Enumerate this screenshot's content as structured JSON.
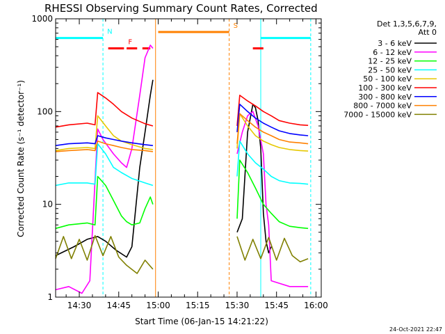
{
  "chart_data": {
    "type": "line",
    "title": "RHESSI Observing Summary Count Rates, Corrected",
    "xlabel": "Start Time (06-Jan-15 14:21:22)",
    "ylabel": "Corrected Count Rate (s⁻¹ detector⁻¹)",
    "xlim": [
      "14:21",
      "16:02"
    ],
    "ylim": [
      1,
      1000
    ],
    "yscale": "log",
    "x_ticks": [
      "14:30",
      "14:45",
      "15:00",
      "15:15",
      "15:30",
      "15:45",
      "16:00"
    ],
    "y_ticks": [
      1,
      10,
      100,
      1000
    ],
    "y_tick_labels": [
      "1",
      "10",
      "100",
      "1000"
    ],
    "legend": {
      "title_lines": [
        "Det 1,3,5,6,7,9,",
        "Att 0"
      ],
      "position": "right"
    },
    "series": [
      {
        "name": "3 - 6 keV",
        "color": "#000000",
        "segments": [
          {
            "x": [
              "14:21",
              "14:28",
              "14:33",
              "14:37",
              "14:40",
              "14:44",
              "14:48",
              "14:50",
              "14:53",
              "14:55",
              "14:57",
              "14:58"
            ],
            "y": [
              2.8,
              3.5,
              4.2,
              4.5,
              4.0,
              3.2,
              2.7,
              3.5,
              25,
              60,
              150,
              220
            ]
          },
          {
            "x": [
              "15:30",
              "15:32",
              "15:34",
              "15:36",
              "15:37",
              "15:38",
              "15:39",
              "15:40",
              "15:41",
              "15:42",
              "15:43"
            ],
            "y": [
              5,
              7,
              60,
              120,
              110,
              80,
              40,
              8,
              4,
              3,
              3.5
            ]
          }
        ]
      },
      {
        "name": "6 - 12 keV",
        "color": "#ff00ff",
        "segments": [
          {
            "x": [
              "14:21",
              "14:26",
              "14:31",
              "14:34",
              "14:37",
              "14:39",
              "14:43",
              "14:46",
              "14:48",
              "14:50",
              "14:53",
              "14:55",
              "14:57",
              "14:58"
            ],
            "y": [
              1.2,
              1.3,
              1.1,
              1.5,
              65,
              50,
              35,
              28,
              25,
              40,
              150,
              380,
              520,
              480
            ]
          },
          {
            "x": [
              "15:30",
              "15:32",
              "15:34",
              "15:36",
              "15:38",
              "15:40",
              "15:41",
              "15:42",
              "15:43",
              "15:50",
              "15:57"
            ],
            "y": [
              35,
              60,
              90,
              100,
              70,
              35,
              10,
              6,
              1.5,
              1.3,
              1.3
            ]
          }
        ]
      },
      {
        "name": "12 - 25 keV",
        "color": "#00ff00",
        "segments": [
          {
            "x": [
              "14:21",
              "14:26",
              "14:33",
              "14:36",
              "14:37",
              "14:40",
              "14:43",
              "14:46",
              "14:48",
              "14:50",
              "14:53",
              "14:55",
              "14:57",
              "14:58"
            ],
            "y": [
              5.5,
              6.0,
              6.3,
              6.0,
              20,
              16,
              11,
              7.5,
              6.5,
              6.0,
              6.3,
              9,
              12,
              10
            ]
          },
          {
            "x": [
              "15:30",
              "15:31",
              "15:34",
              "15:37",
              "15:40",
              "15:43",
              "15:46",
              "15:50",
              "15:54",
              "15:57"
            ],
            "y": [
              7,
              30,
              22,
              15,
              10,
              8,
              6.5,
              5.8,
              5.6,
              5.5
            ]
          }
        ]
      },
      {
        "name": "25 - 50 keV",
        "color": "#00ffff",
        "segments": [
          {
            "x": [
              "14:21",
              "14:26",
              "14:33",
              "14:36",
              "14:37",
              "14:40",
              "14:43",
              "14:46",
              "14:50",
              "14:55",
              "14:58"
            ],
            "y": [
              16,
              17,
              17,
              16.5,
              45,
              35,
              25,
              22,
              19,
              17,
              16
            ]
          },
          {
            "x": [
              "15:30",
              "15:31",
              "15:34",
              "15:37",
              "15:40",
              "15:43",
              "15:46",
              "15:50",
              "15:54",
              "15:57"
            ],
            "y": [
              20,
              48,
              35,
              28,
              24,
              20,
              18,
              17,
              16.8,
              16.5
            ]
          }
        ]
      },
      {
        "name": "50 - 100 keV",
        "color": "#e6c800",
        "segments": [
          {
            "x": [
              "14:21",
              "14:26",
              "14:33",
              "14:36",
              "14:37",
              "14:40",
              "14:43",
              "14:46",
              "14:50",
              "14:55",
              "14:58"
            ],
            "y": [
              38,
              40,
              41,
              40,
              90,
              70,
              55,
              48,
              44,
              40,
              39
            ]
          },
          {
            "x": [
              "15:30",
              "15:31",
              "15:34",
              "15:37",
              "15:40",
              "15:43",
              "15:46",
              "15:50",
              "15:54",
              "15:57"
            ],
            "y": [
              40,
              95,
              70,
              55,
              48,
              44,
              41,
              39,
              38,
              37.5
            ]
          }
        ]
      },
      {
        "name": "100 - 300 keV",
        "color": "#ff0000",
        "segments": [
          {
            "x": [
              "14:21",
              "14:26",
              "14:33",
              "14:36",
              "14:37",
              "14:40",
              "14:43",
              "14:46",
              "14:50",
              "14:55",
              "14:58"
            ],
            "y": [
              68,
              72,
              75,
              72,
              160,
              140,
              120,
              100,
              85,
              74,
              70
            ]
          },
          {
            "x": [
              "15:30",
              "15:31",
              "15:34",
              "15:37",
              "15:40",
              "15:43",
              "15:46",
              "15:50",
              "15:54",
              "15:57"
            ],
            "y": [
              70,
              150,
              130,
              115,
              100,
              90,
              80,
              75,
              72,
              71
            ]
          }
        ]
      },
      {
        "name": "300 - 800 keV",
        "color": "#0000ff",
        "segments": [
          {
            "x": [
              "14:21",
              "14:26",
              "14:33",
              "14:36",
              "14:37",
              "14:40",
              "14:43",
              "14:46",
              "14:50",
              "14:55",
              "14:58"
            ],
            "y": [
              43,
              45,
              46,
              45,
              55,
              52,
              50,
              48,
              46,
              44,
              43
            ]
          },
          {
            "x": [
              "15:30",
              "15:31",
              "15:34",
              "15:37",
              "15:40",
              "15:43",
              "15:46",
              "15:50",
              "15:54",
              "15:57"
            ],
            "y": [
              60,
              120,
              100,
              85,
              75,
              68,
              62,
              58,
              56,
              55
            ]
          }
        ]
      },
      {
        "name": "800 - 7000 keV",
        "color": "#ff8000",
        "segments": [
          {
            "x": [
              "14:21",
              "14:26",
              "14:33",
              "14:36",
              "14:37",
              "14:40",
              "14:43",
              "14:46",
              "14:50",
              "14:55",
              "14:58"
            ],
            "y": [
              37,
              38,
              39,
              38,
              48,
              45,
              43,
              41,
              39,
              38,
              37
            ]
          },
          {
            "x": [
              "15:30",
              "15:31",
              "15:34",
              "15:37",
              "15:40",
              "15:43",
              "15:46",
              "15:50",
              "15:54",
              "15:57"
            ],
            "y": [
              45,
              95,
              80,
              68,
              60,
              55,
              50,
              47,
              46,
              45
            ]
          }
        ]
      },
      {
        "name": "7000 - 15000 keV",
        "color": "#808000",
        "segments": [
          {
            "x": [
              "14:21",
              "14:24",
              "14:27",
              "14:30",
              "14:33",
              "14:36",
              "14:39",
              "14:42",
              "14:45",
              "14:48",
              "14:52",
              "14:55",
              "14:58"
            ],
            "y": [
              2.6,
              4.5,
              2.6,
              4.2,
              2.5,
              4.6,
              2.8,
              4.5,
              2.7,
              2.2,
              1.8,
              2.5,
              2.0
            ]
          },
          {
            "x": [
              "15:30",
              "15:33",
              "15:36",
              "15:39",
              "15:42",
              "15:45",
              "15:48",
              "15:51",
              "15:54",
              "15:57"
            ],
            "y": [
              4.5,
              2.5,
              4.2,
              2.6,
              4.4,
              2.5,
              4.3,
              2.8,
              2.4,
              2.6
            ]
          }
        ]
      }
    ],
    "flag_bars": [
      {
        "label": "N",
        "color": "#00ffff",
        "y_level": 620,
        "segments": [
          [
            "14:21",
            "14:39"
          ],
          [
            "15:39",
            "15:58"
          ]
        ]
      },
      {
        "label": "F",
        "color": "#ff0000",
        "y_level": 480,
        "segments": [
          [
            "14:41",
            "14:47"
          ],
          [
            "14:48",
            "14:52"
          ],
          [
            "14:54",
            "14:57"
          ],
          [
            "15:36",
            "15:40"
          ]
        ]
      },
      {
        "label": "S",
        "color": "#ff8000",
        "y_level": 720,
        "segments": [
          [
            "15:00",
            "15:27"
          ]
        ]
      }
    ],
    "vlines": [
      {
        "x": "14:21",
        "color": "#00ffff",
        "style": "dashed"
      },
      {
        "x": "14:39",
        "color": "#00ffff",
        "style": "dashed"
      },
      {
        "x": "14:59",
        "color": "#ff8000",
        "style": "solid"
      },
      {
        "x": "15:27",
        "color": "#ff8000",
        "style": "dashed"
      },
      {
        "x": "15:39",
        "color": "#00ffff",
        "style": "solid"
      },
      {
        "x": "15:58",
        "color": "#00ffff",
        "style": "dashed"
      }
    ]
  },
  "timestamp": "24-Oct-2021 22:47"
}
